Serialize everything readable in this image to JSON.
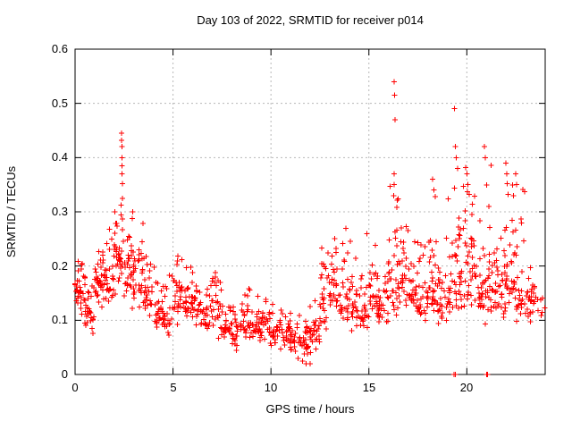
{
  "title": "Day 103 of 2022, SRMTID for receiver p014",
  "x_axis": {
    "label": "GPS time / hours",
    "tick_labels": [
      "0",
      "5",
      "10",
      "15",
      "20"
    ],
    "tick_values": [
      0,
      5,
      10,
      15,
      20
    ],
    "range": [
      0,
      24
    ]
  },
  "y_axis": {
    "label": "SRMTID / TECUs",
    "tick_labels": [
      "0",
      "0.1",
      "0.2",
      "0.3",
      "0.4",
      "0.5",
      "0.6"
    ],
    "tick_values": [
      0,
      0.1,
      0.2,
      0.3,
      0.4,
      0.5,
      0.6
    ],
    "range": [
      0,
      0.6
    ]
  },
  "colors": {
    "marker": "#ff0000",
    "grid": "#b8b8b8",
    "border": "#000000",
    "background": "#ffffff"
  },
  "chart_data": {
    "type": "scatter",
    "marker": "plus",
    "series_name": "SRMTID",
    "series_color": "#ff0000",
    "title": "Day 103 of 2022, SRMTID for receiver p014",
    "xlabel": "GPS time / hours",
    "ylabel": "SRMTID / TECUs",
    "xlim": [
      0,
      24
    ],
    "ylim": [
      0,
      0.6
    ],
    "grid": true,
    "legend": "none",
    "density_profile": {
      "description": "binned envelope of the dense scatter, read from gridlines",
      "bin_hours": 0.5,
      "columns": [
        "bin_start_hour",
        "approx_count",
        "y_low",
        "y_high",
        "y_mode"
      ],
      "bins": [
        [
          0.0,
          30,
          0.08,
          0.21,
          0.16
        ],
        [
          0.5,
          30,
          0.06,
          0.2,
          0.13
        ],
        [
          1.0,
          32,
          0.09,
          0.24,
          0.17
        ],
        [
          1.5,
          30,
          0.1,
          0.27,
          0.18
        ],
        [
          2.0,
          34,
          0.12,
          0.31,
          0.2
        ],
        [
          2.5,
          30,
          0.1,
          0.3,
          0.18
        ],
        [
          3.0,
          30,
          0.1,
          0.28,
          0.19
        ],
        [
          3.5,
          28,
          0.08,
          0.22,
          0.14
        ],
        [
          4.0,
          26,
          0.07,
          0.2,
          0.12
        ],
        [
          4.5,
          26,
          0.05,
          0.19,
          0.11
        ],
        [
          5.0,
          28,
          0.08,
          0.22,
          0.14
        ],
        [
          5.5,
          26,
          0.08,
          0.2,
          0.13
        ],
        [
          6.0,
          26,
          0.07,
          0.19,
          0.12
        ],
        [
          6.5,
          24,
          0.06,
          0.17,
          0.11
        ],
        [
          7.0,
          26,
          0.05,
          0.19,
          0.12
        ],
        [
          7.5,
          24,
          0.04,
          0.16,
          0.09
        ],
        [
          8.0,
          24,
          0.03,
          0.14,
          0.08
        ],
        [
          8.5,
          26,
          0.04,
          0.16,
          0.09
        ],
        [
          9.0,
          24,
          0.04,
          0.16,
          0.09
        ],
        [
          9.5,
          24,
          0.04,
          0.15,
          0.09
        ],
        [
          10.0,
          24,
          0.03,
          0.13,
          0.08
        ],
        [
          10.5,
          24,
          0.03,
          0.13,
          0.08
        ],
        [
          11.0,
          24,
          0.02,
          0.12,
          0.07
        ],
        [
          11.5,
          26,
          0.02,
          0.12,
          0.06
        ],
        [
          12.0,
          26,
          0.02,
          0.16,
          0.08
        ],
        [
          12.5,
          26,
          0.05,
          0.28,
          0.12
        ],
        [
          13.0,
          28,
          0.08,
          0.27,
          0.15
        ],
        [
          13.5,
          26,
          0.07,
          0.28,
          0.13
        ],
        [
          14.0,
          26,
          0.06,
          0.25,
          0.13
        ],
        [
          14.5,
          24,
          0.06,
          0.29,
          0.11
        ],
        [
          15.0,
          28,
          0.08,
          0.25,
          0.15
        ],
        [
          15.5,
          26,
          0.05,
          0.22,
          0.12
        ],
        [
          16.0,
          30,
          0.08,
          0.37,
          0.16
        ],
        [
          16.5,
          28,
          0.1,
          0.33,
          0.18
        ],
        [
          17.0,
          26,
          0.09,
          0.28,
          0.15
        ],
        [
          17.5,
          26,
          0.08,
          0.25,
          0.13
        ],
        [
          18.0,
          28,
          0.1,
          0.36,
          0.16
        ],
        [
          18.5,
          26,
          0.08,
          0.28,
          0.14
        ],
        [
          19.0,
          28,
          0.09,
          0.35,
          0.16
        ],
        [
          19.5,
          30,
          0.1,
          0.42,
          0.2
        ],
        [
          20.0,
          30,
          0.1,
          0.37,
          0.19
        ],
        [
          20.5,
          28,
          0.08,
          0.3,
          0.15
        ],
        [
          21.0,
          30,
          0.08,
          0.4,
          0.16
        ],
        [
          21.5,
          30,
          0.08,
          0.3,
          0.15
        ],
        [
          22.0,
          30,
          0.1,
          0.37,
          0.18
        ],
        [
          22.5,
          28,
          0.08,
          0.35,
          0.14
        ],
        [
          23.0,
          26,
          0.08,
          0.2,
          0.13
        ],
        [
          23.5,
          8,
          0.09,
          0.18,
          0.13
        ]
      ]
    },
    "notable_points": [
      [
        2.38,
        0.445
      ],
      [
        2.38,
        0.432
      ],
      [
        2.39,
        0.42
      ],
      [
        2.39,
        0.4
      ],
      [
        2.4,
        0.385
      ],
      [
        2.4,
        0.37
      ],
      [
        2.41,
        0.352
      ],
      [
        2.42,
        0.325
      ],
      [
        2.35,
        0.312
      ],
      [
        2.95,
        0.3
      ],
      [
        16.3,
        0.54
      ],
      [
        16.31,
        0.515
      ],
      [
        16.33,
        0.47
      ],
      [
        16.28,
        0.37
      ],
      [
        16.29,
        0.35
      ],
      [
        16.27,
        0.33
      ],
      [
        18.25,
        0.36
      ],
      [
        18.32,
        0.34
      ],
      [
        18.38,
        0.328
      ],
      [
        19.38,
        0.49
      ],
      [
        19.42,
        0.42
      ],
      [
        19.47,
        0.4
      ],
      [
        19.52,
        0.38
      ],
      [
        20.0,
        0.37
      ],
      [
        20.06,
        0.35
      ],
      [
        20.12,
        0.332
      ],
      [
        20.9,
        0.42
      ],
      [
        20.95,
        0.4
      ],
      [
        22.0,
        0.39
      ],
      [
        22.03,
        0.37
      ],
      [
        22.06,
        0.352
      ],
      [
        22.1,
        0.332
      ],
      [
        22.5,
        0.37
      ],
      [
        22.55,
        0.35
      ],
      [
        19.35,
        0.0
      ],
      [
        19.42,
        0.0
      ],
      [
        21.0,
        0.0
      ],
      [
        21.06,
        0.0
      ],
      [
        11.8,
        0.02
      ],
      [
        12.0,
        0.02
      ],
      [
        11.62,
        0.025
      ]
    ]
  }
}
